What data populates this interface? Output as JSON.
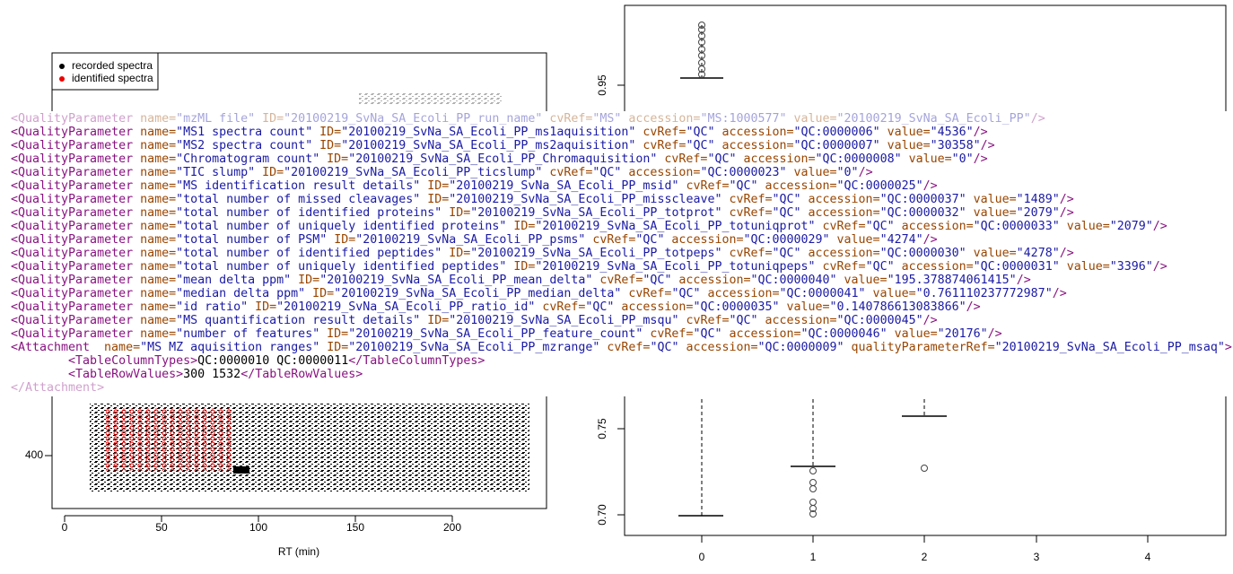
{
  "left_plot": {
    "legend": [
      "recorded spectra",
      "identified spectra"
    ],
    "ytick_labels": [
      "400"
    ],
    "xtick_labels": [
      "0",
      "50",
      "100",
      "150",
      "200"
    ],
    "xlabel": "RT (min)"
  },
  "right_plot": {
    "ytick_labels": [
      "0.95",
      "0.75",
      "0.70"
    ],
    "xtick_labels": [
      "0",
      "1",
      "2",
      "3",
      "4"
    ]
  },
  "xml_lines": [
    [
      "<QualityParameter",
      "name=",
      "\"mzML file\"",
      "ID=",
      "\"20100219_SvNa_SA_Ecoli_PP_run_name\"",
      "cvRef=",
      "\"MS\"",
      "accession=",
      "\"MS:1000577\"",
      "value=",
      "\"20100219_SvNa_SA_Ecoli_PP\"",
      "/>"
    ],
    [
      "<QualityParameter",
      "name=",
      "\"MS1 spectra count\"",
      "ID=",
      "\"20100219_SvNa_SA_Ecoli_PP_ms1aquisition\"",
      "cvRef=",
      "\"QC\"",
      "accession=",
      "\"QC:0000006\"",
      "value=",
      "\"4536\"",
      "/>"
    ],
    [
      "<QualityParameter",
      "name=",
      "\"MS2 spectra count\"",
      "ID=",
      "\"20100219_SvNa_SA_Ecoli_PP_ms2aquisition\"",
      "cvRef=",
      "\"QC\"",
      "accession=",
      "\"QC:0000007\"",
      "value=",
      "\"30358\"",
      "/>"
    ],
    [
      "<QualityParameter",
      "name=",
      "\"Chromatogram count\"",
      "ID=",
      "\"20100219_SvNa_SA_Ecoli_PP_Chromaquisition\"",
      "cvRef=",
      "\"QC\"",
      "accession=",
      "\"QC:0000008\"",
      "value=",
      "\"0\"",
      "/>"
    ],
    [
      "<QualityParameter",
      "name=",
      "\"TIC slump\"",
      "ID=",
      "\"20100219_SvNa_SA_Ecoli_PP_ticslump\"",
      "cvRef=",
      "\"QC\"",
      "accession=",
      "\"QC:0000023\"",
      "value=",
      "\"0\"",
      "/>"
    ],
    [
      "<QualityParameter",
      "name=",
      "\"MS identification result details\"",
      "ID=",
      "\"20100219_SvNa_SA_Ecoli_PP_msid\"",
      "cvRef=",
      "\"QC\"",
      "accession=",
      "\"QC:0000025\"",
      "/>"
    ],
    [
      "<QualityParameter",
      "name=",
      "\"total number of missed cleavages\"",
      "ID=",
      "\"20100219_SvNa_SA_Ecoli_PP_misscleave\"",
      "cvRef=",
      "\"QC\"",
      "accession=",
      "\"QC:0000037\"",
      "value=",
      "\"1489\"",
      "/>"
    ],
    [
      "<QualityParameter",
      "name=",
      "\"total number of identified proteins\"",
      "ID=",
      "\"20100219_SvNa_SA_Ecoli_PP_totprot\"",
      "cvRef=",
      "\"QC\"",
      "accession=",
      "\"QC:0000032\"",
      "value=",
      "\"2079\"",
      "/>"
    ],
    [
      "<QualityParameter",
      "name=",
      "\"total number of uniquely identified proteins\"",
      "ID=",
      "\"20100219_SvNa_SA_Ecoli_PP_totuniqprot\"",
      "cvRef=",
      "\"QC\"",
      "accession=",
      "\"QC:0000033\"",
      "value=",
      "\"2079\"",
      "/>"
    ],
    [
      "<QualityParameter",
      "name=",
      "\"total number of PSM\"",
      "ID=",
      "\"20100219_SvNa_SA_Ecoli_PP_psms\"",
      "cvRef=",
      "\"QC\"",
      "accession=",
      "\"QC:0000029\"",
      "value=",
      "\"4274\"",
      "/>"
    ],
    [
      "<QualityParameter",
      "name=",
      "\"total number of identified peptides\"",
      "ID=",
      "\"20100219_SvNa_SA_Ecoli_PP_totpeps\"",
      "cvRef=",
      "\"QC\"",
      "accession=",
      "\"QC:0000030\"",
      "value=",
      "\"4278\"",
      "/>"
    ],
    [
      "<QualityParameter",
      "name=",
      "\"total number of uniquely identified peptides\"",
      "ID=",
      "\"20100219_SvNa_SA_Ecoli_PP_totuniqpeps\"",
      "cvRef=",
      "\"QC\"",
      "accession=",
      "\"QC:0000031\"",
      "value=",
      "\"3396\"",
      "/>"
    ],
    [
      "<QualityParameter",
      "name=",
      "\"mean delta ppm\"",
      "ID=",
      "\"20100219_SvNa_SA_Ecoli_PP_mean_delta\"",
      "cvRef=",
      "\"QC\"",
      "accession=",
      "\"QC:0000040\"",
      "value=",
      "\"195.378874061415\"",
      "/>"
    ],
    [
      "<QualityParameter",
      "name=",
      "\"median delta ppm\"",
      "ID=",
      "\"20100219_SvNa_SA_Ecoli_PP_median_delta\"",
      "cvRef=",
      "\"QC\"",
      "accession=",
      "\"QC:0000041\"",
      "value=",
      "\"0.761110237772987\"",
      "/>"
    ],
    [
      "<QualityParameter",
      "name=",
      "\"id ratio\"",
      "ID=",
      "\"20100219_SvNa_SA_Ecoli_PP_ratio_id\"",
      "cvRef=",
      "\"QC\"",
      "accession=",
      "\"QC:0000035\"",
      "value=",
      "\"0.140786613083866\"",
      "/>"
    ],
    [
      "<QualityParameter",
      "name=",
      "\"MS quantification result details\"",
      "ID=",
      "\"20100219_SvNa_SA_Ecoli_PP_msqu\"",
      "cvRef=",
      "\"QC\"",
      "accession=",
      "\"QC:0000045\"",
      "/>"
    ],
    [
      "<QualityParameter",
      "name=",
      "\"number of features\"",
      "ID=",
      "\"20100219_SvNa_SA_Ecoli_PP_feature_count\"",
      "cvRef=",
      "\"QC\"",
      "accession=",
      "\"QC:0000046\"",
      "value=",
      "\"20176\"",
      "/>"
    ],
    [
      "<Attachment ",
      "name=",
      "\"MS MZ aquisition ranges\"",
      "ID=",
      "\"20100219_SvNa_SA_Ecoli_PP_mzrange\"",
      "cvRef=",
      "\"QC\"",
      "accession=",
      "\"QC:0000009\"",
      "qualityParameterRef=",
      "\"20100219_SvNa_SA_Ecoli_PP_msaq\"",
      ">"
    ],
    [
      "        <TableColumnTypes>",
      "QC:0000010 QC:0000011",
      "</TableColumnTypes>"
    ],
    [
      "        <TableRowValues>",
      "300 1532",
      "</TableRowValues>"
    ],
    [
      "</Attachment>"
    ]
  ]
}
